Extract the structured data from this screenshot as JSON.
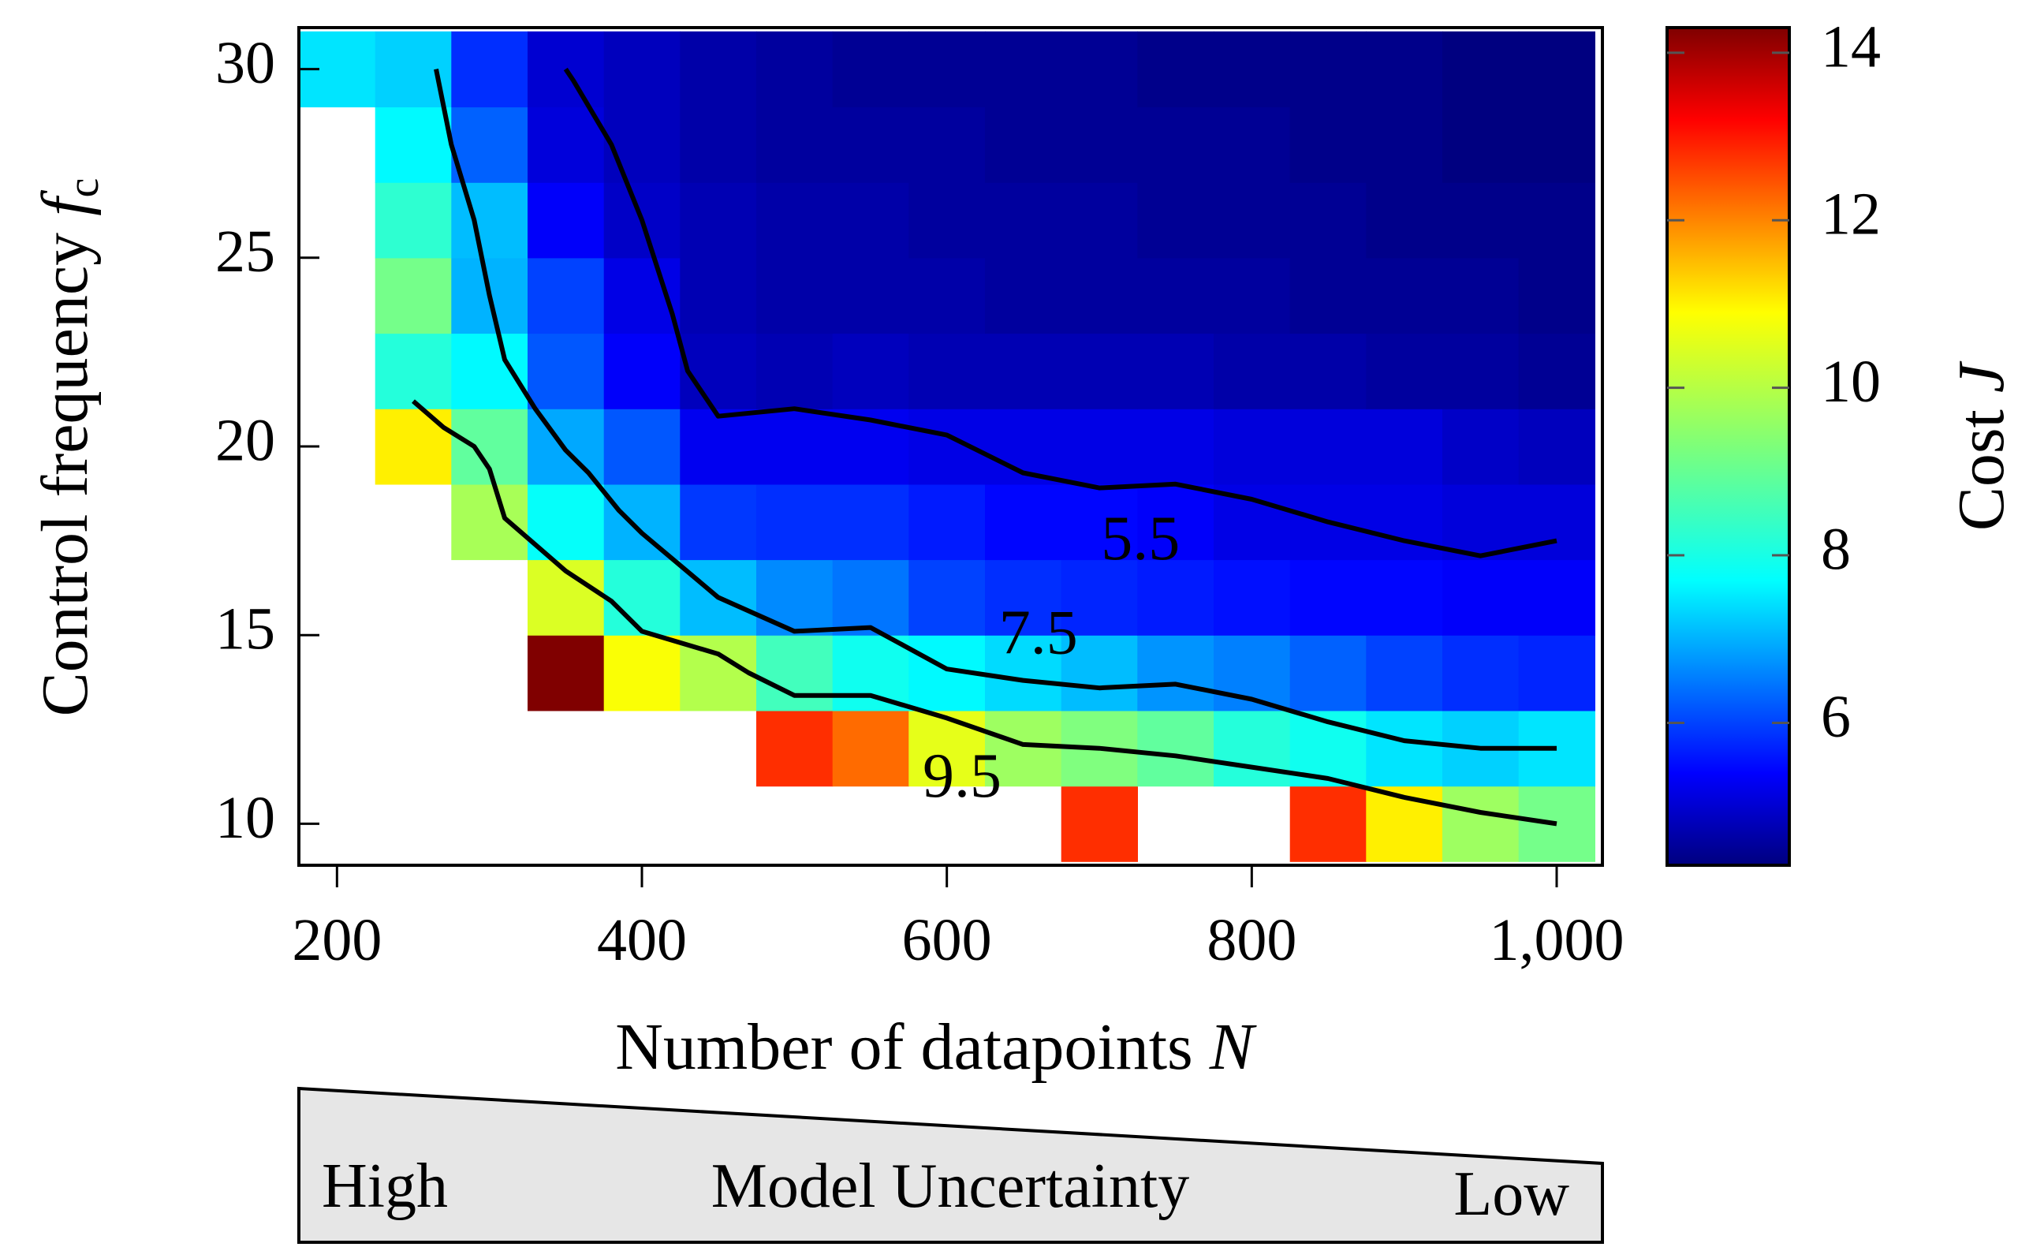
{
  "chart_data": {
    "type": "heatmap",
    "title": "",
    "xlabel": "Number of datapoints",
    "xlabel_var": "N",
    "ylabel": "Control frequency",
    "ylabel_var": "f",
    "ylabel_sub": "c",
    "colorbar_label": "Cost",
    "colorbar_var": "J",
    "colormap": "jet",
    "color_range": [
      4.3,
      14.3
    ],
    "xlim": [
      175,
      1030
    ],
    "ylim": [
      8.9,
      31.1
    ],
    "x_ticks": [
      200,
      400,
      600,
      800,
      1000
    ],
    "x_tick_labels": [
      "200",
      "400",
      "600",
      "800",
      "1,000"
    ],
    "y_ticks": [
      10,
      15,
      20,
      25,
      30
    ],
    "y_tick_labels": [
      "10",
      "15",
      "20",
      "25",
      "30"
    ],
    "colorbar_ticks": [
      6,
      8,
      10,
      12,
      14
    ],
    "colorbar_tick_labels": [
      "6",
      "8",
      "10",
      "12",
      "14"
    ],
    "grid": false,
    "x": [
      200,
      250,
      300,
      350,
      400,
      450,
      500,
      550,
      600,
      650,
      700,
      750,
      800,
      850,
      900,
      950,
      1000
    ],
    "y": [
      10,
      12,
      14,
      16,
      18,
      20,
      22,
      24,
      26,
      28,
      30
    ],
    "z": [
      [
        null,
        null,
        null,
        null,
        null,
        null,
        null,
        null,
        null,
        null,
        12.6,
        null,
        null,
        12.6,
        10.7,
        9.6,
        9.2
      ],
      [
        null,
        null,
        null,
        null,
        null,
        null,
        12.6,
        12.0,
        10.3,
        9.6,
        9.3,
        9.0,
        8.4,
        8.2,
        7.8,
        7.6,
        7.8
      ],
      [
        null,
        null,
        null,
        14.3,
        10.5,
        9.8,
        8.7,
        8.2,
        8.0,
        7.7,
        7.4,
        7.0,
        6.8,
        6.5,
        6.2,
        6.0,
        5.9
      ],
      [
        null,
        null,
        null,
        10.2,
        8.4,
        7.4,
        6.9,
        6.7,
        6.2,
        6.0,
        5.9,
        5.8,
        5.7,
        5.6,
        5.6,
        5.5,
        5.5
      ],
      [
        null,
        null,
        9.7,
        8.1,
        7.3,
        6.1,
        6.0,
        6.0,
        5.8,
        5.6,
        5.6,
        5.5,
        5.3,
        5.3,
        5.3,
        5.2,
        5.2
      ],
      [
        null,
        10.7,
        9.0,
        7.2,
        6.4,
        5.4,
        5.4,
        5.4,
        5.3,
        5.3,
        5.3,
        5.3,
        5.2,
        5.2,
        5.2,
        5.0,
        4.9
      ],
      [
        null,
        8.4,
        8.0,
        6.4,
        5.5,
        4.9,
        4.8,
        4.9,
        4.8,
        4.8,
        4.8,
        4.8,
        4.7,
        4.7,
        4.6,
        4.6,
        4.5
      ],
      [
        null,
        9.2,
        7.3,
        6.2,
        5.3,
        4.8,
        4.7,
        4.7,
        4.7,
        4.6,
        4.6,
        4.6,
        4.6,
        4.5,
        4.5,
        4.5,
        4.4
      ],
      [
        null,
        8.5,
        7.4,
        5.5,
        5.0,
        4.8,
        4.7,
        4.7,
        4.6,
        4.6,
        4.6,
        4.5,
        4.5,
        4.5,
        4.4,
        4.4,
        4.4
      ],
      [
        null,
        8.0,
        6.5,
        5.2,
        4.9,
        4.7,
        4.6,
        4.6,
        4.6,
        4.5,
        4.5,
        4.5,
        4.5,
        4.4,
        4.4,
        4.3,
        4.3
      ],
      [
        7.8,
        7.6,
        6.0,
        5.1,
        4.9,
        4.7,
        4.6,
        4.5,
        4.5,
        4.5,
        4.5,
        4.4,
        4.4,
        4.4,
        4.4,
        4.3,
        4.3
      ]
    ],
    "contours": [
      {
        "level": "5.5",
        "points": [
          [
            350,
            30
          ],
          [
            355,
            29.7
          ],
          [
            380,
            28
          ],
          [
            400,
            26
          ],
          [
            420,
            23.5
          ],
          [
            430,
            22
          ],
          [
            450,
            20.8
          ],
          [
            500,
            21
          ],
          [
            550,
            20.7
          ],
          [
            600,
            20.3
          ],
          [
            650,
            19.3
          ],
          [
            700,
            18.9
          ],
          [
            750,
            19
          ],
          [
            800,
            18.6
          ],
          [
            850,
            18
          ],
          [
            900,
            17.5
          ],
          [
            950,
            17.1
          ],
          [
            1000,
            17.5
          ]
        ]
      },
      {
        "level": "7.5",
        "points": [
          [
            265,
            30
          ],
          [
            275,
            28
          ],
          [
            290,
            26
          ],
          [
            300,
            24
          ],
          [
            310,
            22.3
          ],
          [
            330,
            21
          ],
          [
            350,
            19.9
          ],
          [
            365,
            19.3
          ],
          [
            385,
            18.3
          ],
          [
            400,
            17.7
          ],
          [
            450,
            16
          ],
          [
            500,
            15.1
          ],
          [
            550,
            15.2
          ],
          [
            600,
            14.1
          ],
          [
            650,
            13.8
          ],
          [
            700,
            13.6
          ],
          [
            750,
            13.7
          ],
          [
            800,
            13.3
          ],
          [
            850,
            12.7
          ],
          [
            900,
            12.2
          ],
          [
            950,
            12
          ],
          [
            1000,
            12
          ]
        ]
      },
      {
        "level": "9.5",
        "points": [
          [
            250,
            21.2
          ],
          [
            270,
            20.5
          ],
          [
            290,
            20
          ],
          [
            300,
            19.4
          ],
          [
            310,
            18.1
          ],
          [
            330,
            17.4
          ],
          [
            350,
            16.7
          ],
          [
            380,
            15.9
          ],
          [
            400,
            15.1
          ],
          [
            450,
            14.5
          ],
          [
            470,
            14
          ],
          [
            500,
            13.4
          ],
          [
            550,
            13.4
          ],
          [
            600,
            12.8
          ],
          [
            650,
            12.1
          ],
          [
            700,
            12
          ],
          [
            750,
            11.8
          ],
          [
            800,
            11.5
          ],
          [
            850,
            11.2
          ],
          [
            900,
            10.7
          ],
          [
            950,
            10.3
          ],
          [
            1000,
            10
          ]
        ]
      }
    ],
    "contour_labels": [
      {
        "text": "5.5",
        "x": 727,
        "y": 17.4
      },
      {
        "text": "7.5",
        "x": 660,
        "y": 14.9
      },
      {
        "text": "9.5",
        "x": 610,
        "y": 11.1
      }
    ]
  },
  "banner": {
    "left": "High",
    "middle": "Model Uncertainty",
    "right": "Low"
  }
}
